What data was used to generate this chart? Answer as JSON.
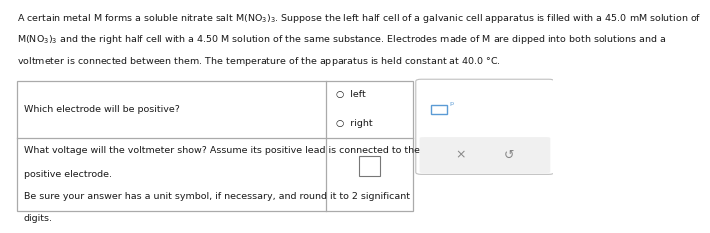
{
  "bg_color": "#ffffff",
  "text_color": "#1a1a1a",
  "gray_color": "#888888",
  "blue_color": "#5b9bd5",
  "fs_header": 6.8,
  "fs_body": 6.8,
  "header_line1": "A certain metal M forms a soluble nitrate salt M(NO₃)₃. Suppose the left half cell of a galvanic cell apparatus is filled with a 45.0 mM solution of",
  "header_line2": "M(NO₃)₃ and the right half cell with a 4.50 M solution of the same substance. Electrodes made of M are dipped into both solutions and a",
  "header_line3": "voltmeter is connected between them. The temperature of the apparatus is held constant at 40.0 °C.",
  "q1_text": "Which electrode will be positive?",
  "opt_left": "○  left",
  "opt_right": "○  right",
  "q2_text1": "What voltage will the voltmeter show? Assume its positive lead is connected to the",
  "q2_text2": "positive electrode.",
  "q2_text3": "Be sure your answer has a unit symbol, if necessary, and round it to 2 significant",
  "q2_text4": "digits.",
  "tl": 0.013,
  "tr": 0.743,
  "tt": 0.648,
  "tb": 0.012,
  "tmr": 0.37,
  "tcs": 0.582,
  "sl": 0.758,
  "sr": 0.993,
  "st": 0.648,
  "smid": 0.37,
  "sb": 0.2,
  "side_bg": "#f0f0f0",
  "side_border": "#c0c0c0",
  "table_border": "#aaaaaa"
}
